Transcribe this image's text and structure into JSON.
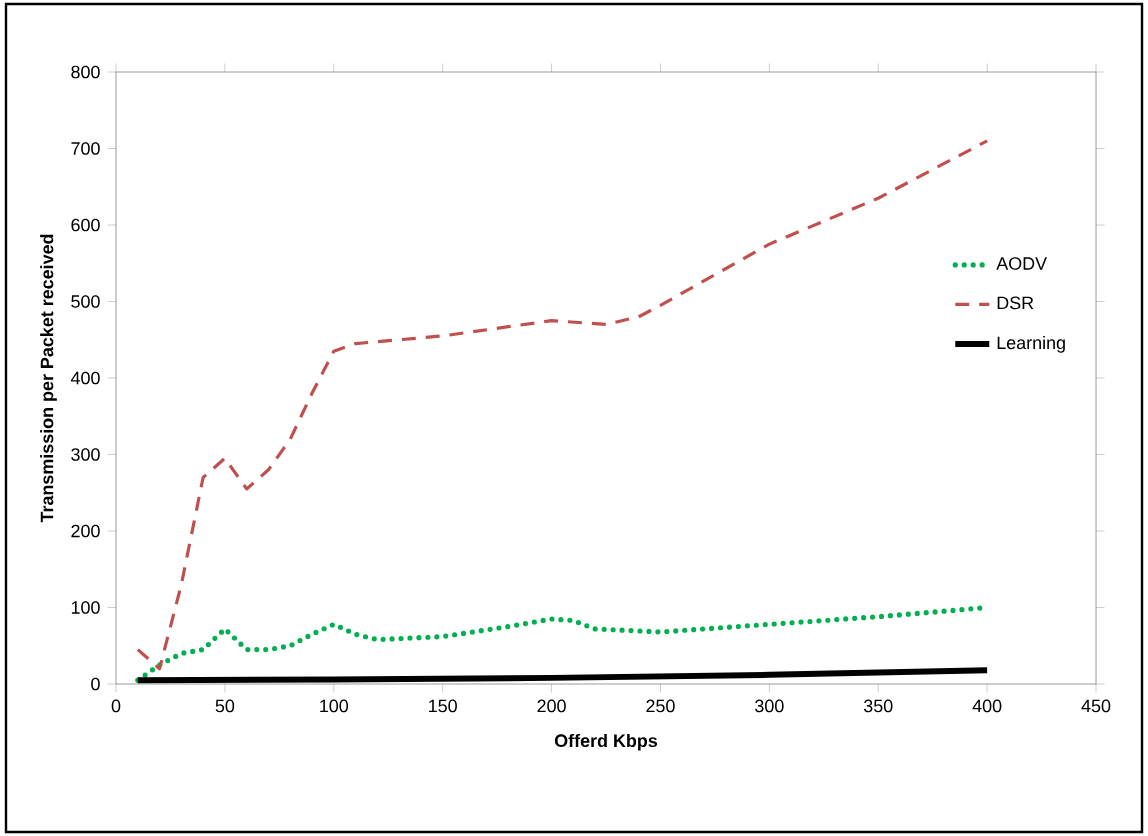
{
  "chart_data": {
    "type": "line",
    "xlabel": "Offerd Kbps",
    "ylabel": "Transmission per Packet received",
    "xlim": [
      0,
      450
    ],
    "ylim": [
      0,
      800
    ],
    "xticks": [
      0,
      50,
      100,
      150,
      200,
      250,
      300,
      350,
      400,
      450
    ],
    "yticks": [
      0,
      100,
      200,
      300,
      400,
      500,
      600,
      700,
      800
    ],
    "grid": false,
    "legend": "right",
    "marker": "none",
    "series": [
      {
        "name": "AODV",
        "color": "#00b050",
        "line_style": "dotted",
        "x": [
          10,
          20,
          30,
          40,
          50,
          60,
          70,
          80,
          90,
          100,
          110,
          120,
          150,
          180,
          200,
          210,
          220,
          250,
          300,
          350,
          400
        ],
        "values": [
          5,
          25,
          40,
          45,
          72,
          45,
          45,
          50,
          65,
          78,
          65,
          58,
          62,
          75,
          85,
          83,
          72,
          68,
          78,
          88,
          100
        ]
      },
      {
        "name": "DSR",
        "color": "#c0504d",
        "line_style": "dashed",
        "x": [
          10,
          20,
          30,
          40,
          50,
          60,
          70,
          80,
          90,
          100,
          110,
          150,
          200,
          225,
          240,
          250,
          300,
          350,
          400
        ],
        "values": [
          45,
          20,
          130,
          270,
          295,
          255,
          280,
          320,
          380,
          435,
          445,
          455,
          475,
          470,
          480,
          495,
          575,
          635,
          710
        ]
      },
      {
        "name": "Learning",
        "color": "#000000",
        "line_style": "solid",
        "x": [
          10,
          100,
          200,
          250,
          300,
          400
        ],
        "values": [
          5,
          6,
          8,
          10,
          12,
          18
        ]
      }
    ]
  }
}
